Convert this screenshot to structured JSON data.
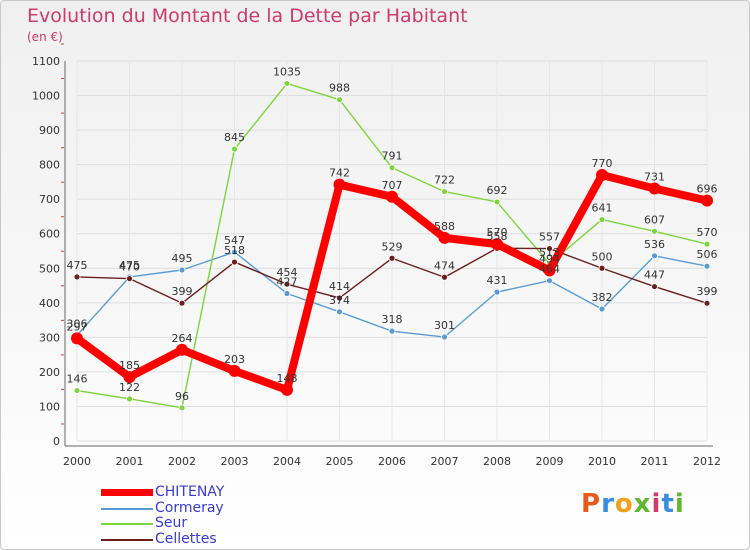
{
  "header": {
    "title": "Evolution du Montant de la Dette par Habitant",
    "subtitle": "(en €)"
  },
  "logo": {
    "text": "Proxiti",
    "colors": [
      "#e85a1e",
      "#3a8ede",
      "#f0a11a",
      "#5fb82f",
      "#cc3a6e",
      "#3a8ede",
      "#5fb82f"
    ]
  },
  "chart_data": {
    "type": "line",
    "x": [
      "2000",
      "2001",
      "2002",
      "2003",
      "2004",
      "2005",
      "2006",
      "2007",
      "2008",
      "2009",
      "2010",
      "2011",
      "2012"
    ],
    "yticks": [
      "0",
      "100",
      "200",
      "300",
      "400",
      "500",
      "600",
      "700",
      "800",
      "900",
      "1000",
      "1100"
    ],
    "ylim": [
      0,
      1100
    ],
    "grid": true,
    "legend_position": "bottom-left",
    "series": [
      {
        "name": "CHITENAY",
        "color": "#ff0000",
        "values": [
          297,
          185,
          264,
          203,
          148,
          742,
          707,
          588,
          570,
          494,
          770,
          731,
          696
        ]
      },
      {
        "name": "Cormeray",
        "color": "#5b9bd5",
        "values": [
          306,
          475,
          495,
          547,
          427,
          374,
          318,
          301,
          431,
          464,
          382,
          536,
          506
        ]
      },
      {
        "name": "Seur",
        "color": "#7dd43c",
        "values": [
          146,
          122,
          96,
          845,
          1035,
          988,
          791,
          722,
          692,
          513,
          641,
          607,
          570
        ]
      },
      {
        "name": "Cellettes",
        "color": "#6b1e1e",
        "values": [
          475,
          470,
          399,
          518,
          454,
          414,
          529,
          474,
          558,
          557,
          500,
          447,
          399
        ]
      }
    ]
  }
}
